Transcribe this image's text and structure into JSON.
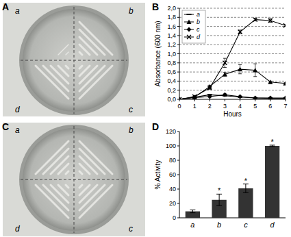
{
  "plates": [
    {
      "title": "A",
      "quadrants": [
        "a",
        "b",
        "c",
        "d"
      ]
    },
    {
      "title": "C",
      "quadrants": [
        "a",
        "b",
        "c",
        "d"
      ]
    }
  ],
  "chart_data": [
    {
      "type": "line",
      "title": "B",
      "x_label": "Hours",
      "y_label": "Absorbance (600 nm)",
      "x": [
        0,
        1,
        2,
        3,
        4,
        5,
        6,
        7
      ],
      "xlim": [
        0,
        7
      ],
      "xticks": [
        0,
        1,
        2,
        3,
        4,
        5,
        6,
        7
      ],
      "ylim": [
        0,
        2
      ],
      "yticks": [
        {
          "value": 0,
          "label": "0,0"
        },
        {
          "value": 0.2,
          "label": "0,2"
        },
        {
          "value": 0.4,
          "label": "0,4"
        },
        {
          "value": 0.6,
          "label": "0,6"
        },
        {
          "value": 0.8,
          "label": "0,8"
        },
        {
          "value": 1,
          "label": "1,0"
        },
        {
          "value": 1.2,
          "label": "1,2"
        },
        {
          "value": 1.4,
          "label": "1,4"
        },
        {
          "value": 1.6,
          "label": "1,6"
        },
        {
          "value": 1.8,
          "label": "1,8"
        },
        {
          "value": 2,
          "label": "2,0"
        }
      ],
      "grid": true,
      "legend": "upper left",
      "series": [
        {
          "name": "a",
          "color": "#000000",
          "marker": "dash",
          "line_style": "solid",
          "values": [
            0,
            0.05,
            0.1,
            0.08,
            0.05,
            0.03,
            0.02,
            0.02
          ],
          "errors": [
            0,
            0,
            0.01,
            0.01,
            0.01,
            0.01,
            0.01,
            0.01
          ]
        },
        {
          "name": "b",
          "color": "#000000",
          "marker": "triangle",
          "line_style": "solid",
          "values": [
            0,
            0.05,
            0.28,
            0.55,
            0.66,
            0.64,
            0.38,
            0.35
          ],
          "errors": [
            0,
            0.01,
            0.03,
            0.04,
            0.1,
            0.14,
            0.02,
            0.02
          ]
        },
        {
          "name": "c",
          "color": "#000000",
          "marker": "diamond",
          "line_style": "solid",
          "values": [
            0,
            0.04,
            0.06,
            0.1,
            0.06,
            0.03,
            0.03,
            0.03
          ],
          "errors": [
            0,
            0,
            0.01,
            0.02,
            0.01,
            0.01,
            0.01,
            0.01
          ]
        },
        {
          "name": "d",
          "color": "#000000",
          "marker": "x",
          "line_style": "solid",
          "values": [
            0,
            0.06,
            0.25,
            0.8,
            1.48,
            1.75,
            1.73,
            1.62
          ],
          "errors": [
            0,
            0.01,
            0.03,
            0.1,
            0.04,
            0.03,
            0.04,
            0.02
          ]
        }
      ]
    },
    {
      "type": "bar",
      "title": "D",
      "y_label": "% Activity",
      "categories": [
        "a",
        "b",
        "c",
        "d"
      ],
      "values": [
        9,
        25,
        41,
        100
      ],
      "errors": [
        2,
        8,
        6,
        1
      ],
      "annotations": [
        null,
        "*",
        "*",
        "*"
      ],
      "color": "#333333",
      "ylim": [
        0,
        120
      ],
      "yticks": [
        0,
        20,
        40,
        60,
        80,
        100,
        120
      ],
      "grid": false
    }
  ]
}
